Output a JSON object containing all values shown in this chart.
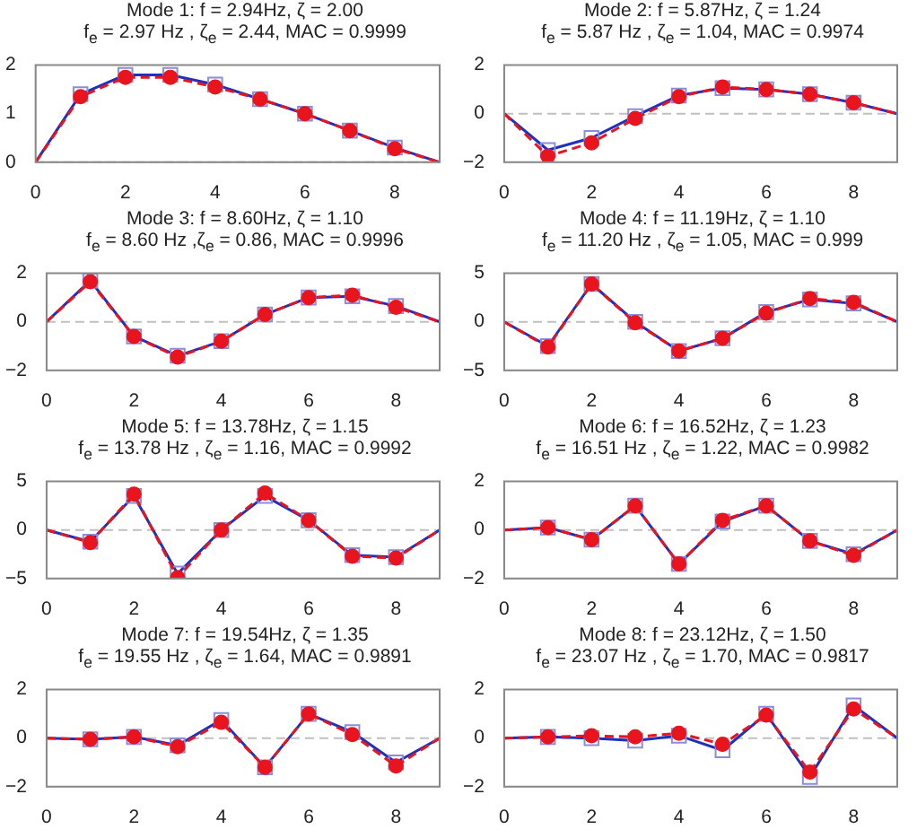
{
  "chart_data": [
    {
      "type": "line",
      "title": "Mode 1: f = 2.94Hz, ζ = 2.00",
      "subtitle": "f$_{e}$ = 2.97 Hz , ζ$_{e}$ = 2.44, MAC = 0.9999",
      "xlim": [
        0,
        9
      ],
      "xticks": [
        0,
        2,
        4,
        6,
        8
      ],
      "ylim": [
        0,
        2
      ],
      "yticks": [
        0,
        1,
        2
      ],
      "legend": false,
      "grid": false,
      "ref_lines": [
        {
          "axis": "y",
          "value": 0,
          "color": "#c0c0c0",
          "line_style": "dashed"
        }
      ],
      "series": [
        {
          "type": "line",
          "color": "#1f2fbf",
          "marker": "none",
          "line_style": "solid",
          "x": [
            0,
            1,
            2,
            3,
            4,
            5,
            6,
            7,
            8,
            9
          ],
          "values": [
            0,
            1.4,
            1.8,
            1.8,
            1.6,
            1.3,
            1.0,
            0.65,
            0.3,
            0
          ]
        },
        {
          "type": "scatter",
          "color": "#8c8cd8",
          "marker": "square",
          "x": [
            1,
            2,
            3,
            4,
            5,
            6,
            7,
            8
          ],
          "values": [
            1.4,
            1.8,
            1.8,
            1.6,
            1.3,
            1.0,
            0.65,
            0.3
          ]
        },
        {
          "type": "line",
          "color": "#e8141e",
          "marker": "none",
          "line_style": "dashed",
          "x": [
            0,
            1,
            2,
            3,
            4,
            5,
            6,
            7,
            8,
            9
          ],
          "values": [
            0,
            1.35,
            1.75,
            1.75,
            1.55,
            1.3,
            1.0,
            0.65,
            0.28,
            0
          ]
        },
        {
          "type": "scatter",
          "color": "#e8141e",
          "marker": "circle",
          "x": [
            1,
            2,
            3,
            4,
            5,
            6,
            7,
            8
          ],
          "values": [
            1.35,
            1.75,
            1.75,
            1.55,
            1.3,
            1.0,
            0.65,
            0.28
          ]
        }
      ]
    },
    {
      "type": "line",
      "title": "Mode 2: f = 5.87Hz, ζ = 1.24",
      "subtitle": "f$_{e}$ = 5.87 Hz , ζ$_{e}$ = 1.04, MAC = 0.9974",
      "xlim": [
        0,
        9
      ],
      "xticks": [
        0,
        2,
        4,
        6,
        8
      ],
      "ylim": [
        -2,
        2
      ],
      "yticks": [
        -2,
        0,
        2
      ],
      "legend": false,
      "grid": false,
      "ref_lines": [
        {
          "axis": "y",
          "value": 0,
          "color": "#c0c0c0",
          "line_style": "dashed"
        }
      ],
      "series": [
        {
          "type": "line",
          "color": "#1f2fbf",
          "marker": "none",
          "line_style": "solid",
          "x": [
            0,
            1,
            2,
            3,
            4,
            5,
            6,
            7,
            8,
            9
          ],
          "values": [
            0,
            -1.5,
            -1.0,
            -0.1,
            0.75,
            1.05,
            1.0,
            0.8,
            0.45,
            0
          ]
        },
        {
          "type": "scatter",
          "color": "#8c8cd8",
          "marker": "square",
          "x": [
            1,
            2,
            3,
            4,
            5,
            6,
            7,
            8
          ],
          "values": [
            -1.5,
            -1.0,
            -0.1,
            0.75,
            1.05,
            1.0,
            0.8,
            0.45
          ]
        },
        {
          "type": "line",
          "color": "#e8141e",
          "marker": "none",
          "line_style": "dashed",
          "x": [
            0,
            1,
            2,
            3,
            4,
            5,
            6,
            7,
            8,
            9
          ],
          "values": [
            0,
            -1.75,
            -1.2,
            -0.2,
            0.7,
            1.1,
            1.0,
            0.8,
            0.45,
            0
          ]
        },
        {
          "type": "scatter",
          "color": "#e8141e",
          "marker": "circle",
          "x": [
            1,
            2,
            3,
            4,
            5,
            6,
            7,
            8
          ],
          "values": [
            -1.75,
            -1.2,
            -0.2,
            0.7,
            1.1,
            1.0,
            0.8,
            0.45
          ]
        }
      ]
    },
    {
      "type": "line",
      "title": "Mode 3: f = 8.60Hz, ζ = 1.10",
      "subtitle": "f$_{e}$ = 8.60 Hz ,ζ$_{e}$ = 0.86, MAC = 0.9996",
      "xlim": [
        0,
        9
      ],
      "xticks": [
        0,
        2,
        4,
        6,
        8
      ],
      "ylim": [
        -2,
        2
      ],
      "yticks": [
        -2,
        0,
        2
      ],
      "legend": false,
      "grid": false,
      "ref_lines": [
        {
          "axis": "y",
          "value": 0,
          "color": "#c0c0c0",
          "line_style": "dashed"
        }
      ],
      "series": [
        {
          "type": "line",
          "color": "#1f2fbf",
          "marker": "none",
          "line_style": "solid",
          "x": [
            0,
            1,
            2,
            3,
            4,
            5,
            6,
            7,
            8,
            9
          ],
          "values": [
            0,
            1.7,
            -0.6,
            -1.4,
            -0.8,
            0.3,
            1.0,
            1.05,
            0.65,
            0
          ]
        },
        {
          "type": "scatter",
          "color": "#8c8cd8",
          "marker": "square",
          "x": [
            1,
            2,
            3,
            4,
            5,
            6,
            7,
            8
          ],
          "values": [
            1.7,
            -0.6,
            -1.4,
            -0.8,
            0.3,
            1.0,
            1.05,
            0.65
          ]
        },
        {
          "type": "line",
          "color": "#e8141e",
          "marker": "none",
          "line_style": "dashed",
          "x": [
            0,
            1,
            2,
            3,
            4,
            5,
            6,
            7,
            8,
            9
          ],
          "values": [
            0,
            1.65,
            -0.6,
            -1.45,
            -0.8,
            0.3,
            1.0,
            1.1,
            0.6,
            0
          ]
        },
        {
          "type": "scatter",
          "color": "#e8141e",
          "marker": "circle",
          "x": [
            1,
            2,
            3,
            4,
            5,
            6,
            7,
            8
          ],
          "values": [
            1.65,
            -0.6,
            -1.45,
            -0.8,
            0.3,
            1.0,
            1.1,
            0.6
          ]
        }
      ]
    },
    {
      "type": "line",
      "title": "Mode 4: f = 11.19Hz, ζ = 1.10",
      "subtitle": "f$_{e}$ = 11.20 Hz , ζ$_{e}$ = 1.05, MAC = 0.999",
      "xlim": [
        0,
        9
      ],
      "xticks": [
        0,
        2,
        4,
        6,
        8
      ],
      "ylim": [
        -5,
        5
      ],
      "yticks": [
        -5,
        0,
        5
      ],
      "legend": false,
      "grid": false,
      "ref_lines": [
        {
          "axis": "y",
          "value": 0,
          "color": "#c0c0c0",
          "line_style": "dashed"
        }
      ],
      "series": [
        {
          "type": "line",
          "color": "#1f2fbf",
          "marker": "none",
          "line_style": "solid",
          "x": [
            0,
            1,
            2,
            3,
            4,
            5,
            6,
            7,
            8,
            9
          ],
          "values": [
            0,
            -2.5,
            3.9,
            0,
            -3,
            -1.7,
            1,
            2.3,
            1.9,
            0
          ]
        },
        {
          "type": "scatter",
          "color": "#8c8cd8",
          "marker": "square",
          "x": [
            1,
            2,
            3,
            4,
            5,
            6,
            7,
            8
          ],
          "values": [
            -2.5,
            3.9,
            0,
            -3,
            -1.7,
            1,
            2.3,
            1.9
          ]
        },
        {
          "type": "line",
          "color": "#e8141e",
          "marker": "none",
          "line_style": "dashed",
          "x": [
            0,
            1,
            2,
            3,
            4,
            5,
            6,
            7,
            8,
            9
          ],
          "values": [
            0,
            -2.6,
            3.9,
            -0.1,
            -3,
            -1.7,
            0.9,
            2.4,
            2.0,
            0
          ]
        },
        {
          "type": "scatter",
          "color": "#e8141e",
          "marker": "circle",
          "x": [
            1,
            2,
            3,
            4,
            5,
            6,
            7,
            8
          ],
          "values": [
            -2.6,
            3.9,
            -0.1,
            -3,
            -1.7,
            0.9,
            2.4,
            2.0
          ]
        }
      ]
    },
    {
      "type": "line",
      "title": "Mode 5: f = 13.78Hz, ζ = 1.15",
      "subtitle": "f$_{e}$ = 13.78 Hz , ζ$_{e}$ = 1.16, MAC = 0.9992",
      "xlim": [
        0,
        9
      ],
      "xticks": [
        0,
        2,
        4,
        6,
        8
      ],
      "ylim": [
        -5,
        5
      ],
      "yticks": [
        -5,
        0,
        5
      ],
      "legend": false,
      "grid": false,
      "ref_lines": [
        {
          "axis": "y",
          "value": 0,
          "color": "#c0c0c0",
          "line_style": "dashed"
        }
      ],
      "series": [
        {
          "type": "line",
          "color": "#1f2fbf",
          "marker": "none",
          "line_style": "solid",
          "x": [
            0,
            1,
            2,
            3,
            4,
            5,
            6,
            7,
            8,
            9
          ],
          "values": [
            0,
            -1.2,
            3.5,
            -4.5,
            0,
            3.5,
            1,
            -2.6,
            -2.8,
            0
          ]
        },
        {
          "type": "scatter",
          "color": "#8c8cd8",
          "marker": "square",
          "x": [
            1,
            2,
            3,
            4,
            5,
            6,
            7,
            8
          ],
          "values": [
            -1.2,
            3.5,
            -4.5,
            0,
            3.5,
            1,
            -2.6,
            -2.8
          ]
        },
        {
          "type": "line",
          "color": "#e8141e",
          "marker": "none",
          "line_style": "dashed",
          "x": [
            0,
            1,
            2,
            3,
            4,
            5,
            6,
            7,
            8,
            9
          ],
          "values": [
            0,
            -1.3,
            3.7,
            -4.9,
            0,
            3.8,
            1,
            -2.7,
            -2.9,
            0
          ]
        },
        {
          "type": "scatter",
          "color": "#e8141e",
          "marker": "circle",
          "x": [
            1,
            2,
            3,
            4,
            5,
            6,
            7,
            8
          ],
          "values": [
            -1.3,
            3.7,
            -4.9,
            0,
            3.8,
            1,
            -2.7,
            -2.9
          ]
        }
      ]
    },
    {
      "type": "line",
      "title": "Mode 6: f = 16.52Hz, ζ = 1.23",
      "subtitle": "f$_{e}$ = 16.51 Hz , ζ$_{e}$ = 1.22, MAC = 0.9982",
      "xlim": [
        0,
        9
      ],
      "xticks": [
        0,
        2,
        4,
        6,
        8
      ],
      "ylim": [
        -2,
        2
      ],
      "yticks": [
        -2,
        0,
        2
      ],
      "legend": false,
      "grid": false,
      "ref_lines": [
        {
          "axis": "y",
          "value": 0,
          "color": "#c0c0c0",
          "line_style": "dashed"
        }
      ],
      "series": [
        {
          "type": "line",
          "color": "#1f2fbf",
          "marker": "none",
          "line_style": "solid",
          "x": [
            0,
            1,
            2,
            3,
            4,
            5,
            6,
            7,
            8,
            9
          ],
          "values": [
            0,
            0.1,
            -0.4,
            1.0,
            -1.4,
            0.35,
            1.0,
            -0.45,
            -1.0,
            0
          ]
        },
        {
          "type": "scatter",
          "color": "#8c8cd8",
          "marker": "square",
          "x": [
            1,
            2,
            3,
            4,
            5,
            6,
            7,
            8
          ],
          "values": [
            0.1,
            -0.4,
            1.0,
            -1.4,
            0.35,
            1.0,
            -0.45,
            -1.0
          ]
        },
        {
          "type": "line",
          "color": "#e8141e",
          "marker": "none",
          "line_style": "dashed",
          "x": [
            0,
            1,
            2,
            3,
            4,
            5,
            6,
            7,
            8,
            9
          ],
          "values": [
            0,
            0.1,
            -0.4,
            1.0,
            -1.4,
            0.4,
            1.0,
            -0.45,
            -1.05,
            0
          ]
        },
        {
          "type": "scatter",
          "color": "#e8141e",
          "marker": "circle",
          "x": [
            1,
            2,
            3,
            4,
            5,
            6,
            7,
            8
          ],
          "values": [
            0.1,
            -0.4,
            1.0,
            -1.4,
            0.4,
            1.0,
            -0.45,
            -1.05
          ]
        }
      ]
    },
    {
      "type": "line",
      "title": "Mode 7: f = 19.54Hz, ζ = 1.35",
      "subtitle": "f$_{e}$ = 19.55 Hz , ζ$_{e}$ = 1.64, MAC = 0.9891",
      "xlim": [
        0,
        9
      ],
      "xticks": [
        0,
        2,
        4,
        6,
        8
      ],
      "ylim": [
        -2,
        2
      ],
      "yticks": [
        -2,
        0,
        2
      ],
      "legend": false,
      "grid": false,
      "ref_lines": [
        {
          "axis": "y",
          "value": 0,
          "color": "#c0c0c0",
          "line_style": "dashed"
        }
      ],
      "series": [
        {
          "type": "line",
          "color": "#1f2fbf",
          "marker": "none",
          "line_style": "solid",
          "x": [
            0,
            1,
            2,
            3,
            4,
            5,
            6,
            7,
            8,
            9
          ],
          "values": [
            0,
            -0.05,
            0.05,
            -0.3,
            0.75,
            -1.2,
            1.0,
            0.25,
            -1.0,
            0
          ]
        },
        {
          "type": "scatter",
          "color": "#8c8cd8",
          "marker": "square",
          "x": [
            1,
            2,
            3,
            4,
            5,
            6,
            7,
            8
          ],
          "values": [
            -0.05,
            0.05,
            -0.3,
            0.75,
            -1.2,
            1.0,
            0.25,
            -1.0
          ]
        },
        {
          "type": "line",
          "color": "#e8141e",
          "marker": "none",
          "line_style": "dashed",
          "x": [
            0,
            1,
            2,
            3,
            4,
            5,
            6,
            7,
            8,
            9
          ],
          "values": [
            0,
            -0.05,
            0.05,
            -0.35,
            0.65,
            -1.2,
            1.0,
            0.15,
            -1.15,
            0
          ]
        },
        {
          "type": "scatter",
          "color": "#e8141e",
          "marker": "circle",
          "x": [
            1,
            2,
            3,
            4,
            5,
            6,
            7,
            8
          ],
          "values": [
            -0.05,
            0.05,
            -0.35,
            0.65,
            -1.2,
            1.0,
            0.15,
            -1.15
          ]
        }
      ]
    },
    {
      "type": "line",
      "title": "Mode 8: f = 23.12Hz, ζ = 1.50",
      "subtitle": "f$_{e}$ = 23.07 Hz , ζ$_{e}$ = 1.70, MAC = 0.9817",
      "xlim": [
        0,
        9
      ],
      "xticks": [
        0,
        2,
        4,
        6,
        8
      ],
      "ylim": [
        -2,
        2
      ],
      "yticks": [
        -2,
        0,
        2
      ],
      "legend": false,
      "grid": false,
      "ref_lines": [
        {
          "axis": "y",
          "value": 0,
          "color": "#c0c0c0",
          "line_style": "dashed"
        }
      ],
      "series": [
        {
          "type": "line",
          "color": "#1f2fbf",
          "marker": "none",
          "line_style": "solid",
          "x": [
            0,
            1,
            2,
            3,
            4,
            5,
            6,
            7,
            8,
            9
          ],
          "values": [
            0,
            0.05,
            0,
            -0.1,
            0.1,
            -0.5,
            1.0,
            -1.6,
            1.35,
            0
          ]
        },
        {
          "type": "scatter",
          "color": "#8c8cd8",
          "marker": "square",
          "x": [
            1,
            2,
            3,
            4,
            5,
            6,
            7,
            8
          ],
          "values": [
            0.05,
            0,
            -0.1,
            0.1,
            -0.5,
            1.0,
            -1.6,
            1.35
          ]
        },
        {
          "type": "line",
          "color": "#e8141e",
          "marker": "none",
          "line_style": "dashed",
          "x": [
            0,
            1,
            2,
            3,
            4,
            5,
            6,
            7,
            8,
            9
          ],
          "values": [
            0,
            0.05,
            0.1,
            0.05,
            0.2,
            -0.25,
            0.95,
            -1.4,
            1.2,
            0
          ]
        },
        {
          "type": "scatter",
          "color": "#e8141e",
          "marker": "circle",
          "x": [
            1,
            2,
            3,
            4,
            5,
            6,
            7,
            8
          ],
          "values": [
            0.05,
            0.1,
            0.05,
            0.2,
            -0.25,
            0.95,
            -1.4,
            1.2
          ]
        }
      ]
    }
  ]
}
